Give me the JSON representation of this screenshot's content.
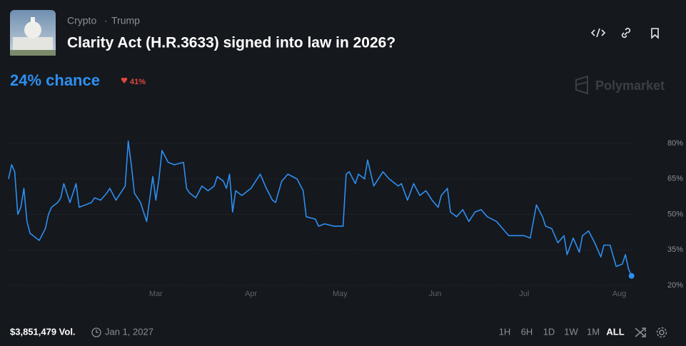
{
  "header": {
    "tags": [
      "Crypto",
      "Trump"
    ],
    "title": "Clarity Act (H.R.3633) signed into law in 2026?"
  },
  "chance": {
    "label": "24% chance",
    "change": "41%"
  },
  "brand": "Polymarket",
  "footer": {
    "volume": "$3,851,479 Vol.",
    "end_date": "Jan 1, 2027",
    "ranges": [
      "1H",
      "6H",
      "1D",
      "1W",
      "1M",
      "ALL"
    ]
  },
  "chart_data": {
    "type": "line",
    "x": [
      0,
      1,
      2,
      3,
      4,
      5,
      6,
      7,
      8,
      10,
      12,
      13,
      14,
      16,
      17,
      18,
      20,
      22,
      23,
      25,
      27,
      28,
      30,
      32,
      33,
      35,
      36,
      38,
      39,
      40,
      41,
      43,
      45,
      47,
      48,
      49,
      50,
      52,
      54,
      57,
      58,
      59,
      61,
      63,
      65,
      67,
      68,
      70,
      71,
      72,
      73,
      74,
      76,
      79,
      82,
      84,
      86,
      87,
      89,
      91,
      94,
      96,
      97,
      100,
      101,
      103,
      106,
      109,
      110,
      111,
      113,
      114,
      116,
      117,
      119,
      120,
      122,
      124,
      127,
      128,
      130,
      132,
      134,
      136,
      138,
      140,
      141,
      143,
      144,
      146,
      148,
      150,
      152,
      154,
      156,
      159,
      161,
      163,
      166,
      168,
      170,
      172,
      174,
      175,
      177,
      179,
      181,
      182,
      184,
      186,
      187,
      189,
      191,
      193,
      194,
      196,
      198,
      200,
      201,
      202,
      203
    ],
    "series": [
      {
        "color": "#2e8ff0",
        "values": [
          65,
          71,
          68,
          50,
          53,
          61,
          47,
          42,
          41,
          39,
          44,
          50,
          53,
          55,
          57,
          63,
          55,
          63,
          53,
          54,
          55,
          57,
          56,
          59,
          61,
          56,
          58,
          62,
          81,
          71,
          59,
          55,
          47,
          66,
          56,
          65,
          77,
          72,
          71,
          72,
          61,
          59,
          57,
          62,
          60,
          62,
          66,
          64,
          61,
          67,
          51,
          60,
          58,
          61,
          67,
          61,
          56,
          55,
          64,
          67,
          65,
          60,
          49,
          48,
          45,
          46,
          45,
          45,
          67,
          68,
          63,
          67,
          65,
          73,
          62,
          64,
          68,
          65,
          62,
          63,
          56,
          63,
          58,
          60,
          56,
          53,
          58,
          61,
          51,
          49,
          52,
          47,
          51,
          52,
          49,
          47,
          44,
          41,
          41,
          41,
          40,
          54,
          49,
          45,
          44,
          38,
          41,
          33,
          40,
          34,
          41,
          43,
          38,
          32,
          37,
          37,
          28,
          29,
          33,
          27,
          24
        ]
      }
    ],
    "xlim": [
      0,
      204
    ],
    "ylim": [
      20,
      80
    ],
    "xticks": [
      {
        "value": 48,
        "label": "Mar"
      },
      {
        "value": 79,
        "label": "Apr"
      },
      {
        "value": 108,
        "label": "May"
      },
      {
        "value": 139,
        "label": "Jun"
      },
      {
        "value": 168,
        "label": "Jul"
      },
      {
        "value": 199,
        "label": "Aug"
      }
    ],
    "yticks": [
      {
        "value": 20,
        "label": "20%"
      },
      {
        "value": 35,
        "label": "35%"
      },
      {
        "value": 50,
        "label": "50%"
      },
      {
        "value": 65,
        "label": "65%"
      },
      {
        "value": 80,
        "label": "80%"
      }
    ],
    "grid": true
  }
}
